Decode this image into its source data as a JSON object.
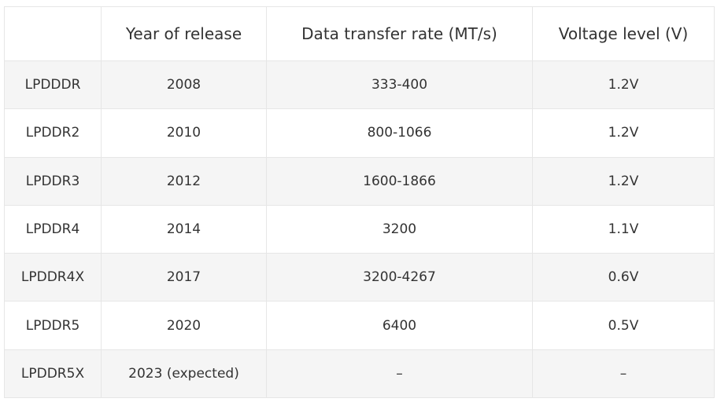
{
  "table": {
    "headers": [
      "",
      "Year of release",
      "Data transfer rate (MT/s)",
      "Voltage level (V)"
    ],
    "rows": [
      [
        "LPDDDR",
        "2008",
        "333-400",
        "1.2V"
      ],
      [
        "LPDDR2",
        "2010",
        "800-1066",
        "1.2V"
      ],
      [
        "LPDDR3",
        "2012",
        "1600-1866",
        "1.2V"
      ],
      [
        "LPDDR4",
        "2014",
        "3200",
        "1.1V"
      ],
      [
        "LPDDR4X",
        "2017",
        "3200-4267",
        "0.6V"
      ],
      [
        "LPDDR5",
        "2020",
        "6400",
        "0.5V"
      ],
      [
        "LPDDR5X",
        "2023 (expected)",
        "–",
        "–"
      ]
    ]
  },
  "colors": {
    "border": "#e6e6e6",
    "shaded_row": "#f5f5f5",
    "text": "#333333"
  }
}
